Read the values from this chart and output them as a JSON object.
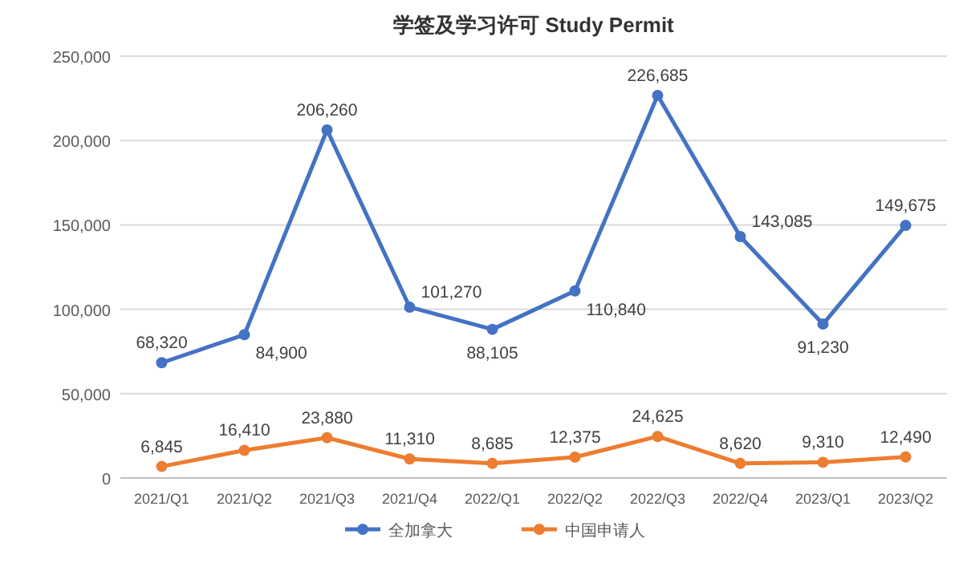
{
  "chart_data": {
    "type": "line",
    "title": "学签及学习许可 Study Permit",
    "categories": [
      "2021/Q1",
      "2021/Q2",
      "2021/Q3",
      "2021/Q4",
      "2022/Q1",
      "2022/Q2",
      "2022/Q3",
      "2022/Q4",
      "2023/Q1",
      "2023/Q2"
    ],
    "series": [
      {
        "name": "全加拿大",
        "color": "#4472c4",
        "values": [
          68320,
          84900,
          206260,
          101270,
          88105,
          110840,
          226685,
          143085,
          91230,
          149675
        ],
        "value_labels": [
          "68,320",
          "84,900",
          "206,260",
          "101,270",
          "88,105",
          "110,840",
          "226,685",
          "143,085",
          "91,230",
          "149,675"
        ]
      },
      {
        "name": "中国申请人",
        "color": "#ed7d31",
        "values": [
          6845,
          16410,
          23880,
          11310,
          8685,
          12375,
          24625,
          8620,
          9310,
          12490
        ],
        "value_labels": [
          "6,845",
          "16,410",
          "23,880",
          "11,310",
          "8,685",
          "12,375",
          "24,625",
          "8,620",
          "9,310",
          "12,490"
        ]
      }
    ],
    "ylim": [
      0,
      250000
    ],
    "yticks": [
      0,
      {
        "value": 50000,
        "label": "50,000"
      },
      {
        "value": 100000,
        "label": "100,000"
      },
      {
        "value": 150000,
        "label": "150,000"
      },
      {
        "value": 200000,
        "label": "200,000"
      },
      {
        "value": 250000,
        "label": "250,000"
      }
    ],
    "grid": "y",
    "legend": "bottom",
    "marker": "circle",
    "line_style": "solid"
  }
}
